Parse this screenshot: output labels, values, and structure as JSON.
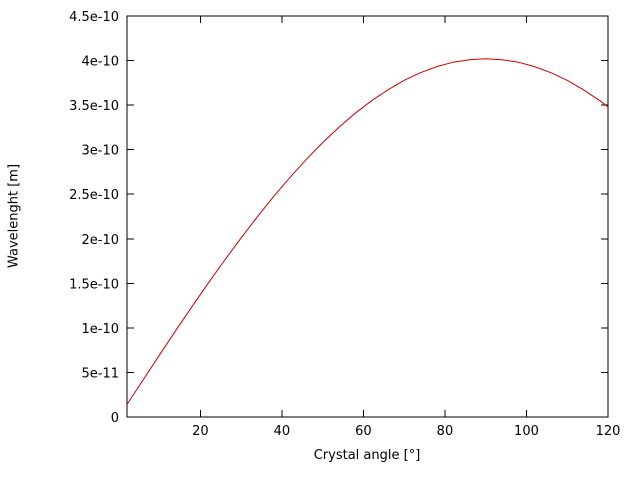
{
  "chart_data": {
    "type": "line",
    "title": "",
    "xlabel": "Crystal angle [°]",
    "ylabel": "Wavelenght [m]",
    "xlim": [
      2,
      120
    ],
    "ylim": [
      0,
      4.5e-10
    ],
    "grid": false,
    "legend": "none",
    "x_tick_values": [
      20,
      40,
      60,
      80,
      100,
      120
    ],
    "x_tick_labels": [
      "20",
      "40",
      "60",
      "80",
      "100",
      "120"
    ],
    "y_tick_values": [
      0,
      5e-11,
      1e-10,
      1.5e-10,
      2e-10,
      2.5e-10,
      3e-10,
      3.5e-10,
      4e-10,
      4.5e-10
    ],
    "y_tick_labels": [
      "0",
      "5e-11",
      "1e-10",
      "1.5e-10",
      "2e-10",
      "2.5e-10",
      "3e-10",
      "3.5e-10",
      "4e-10",
      "4.5e-10"
    ],
    "series": [
      {
        "name": "wavelength",
        "color": "#cc0000",
        "x": [
          2,
          6,
          10,
          14,
          18,
          22,
          26,
          30,
          34,
          38,
          42,
          46,
          50,
          54,
          58,
          62,
          66,
          70,
          74,
          78,
          82,
          86,
          90,
          94,
          98,
          102,
          106,
          110,
          114,
          118,
          120
        ],
        "y": [
          1.403e-11,
          4.202e-11,
          6.981e-11,
          9.725e-11,
          1.242e-10,
          1.506e-10,
          1.762e-10,
          2.01e-10,
          2.248e-10,
          2.475e-10,
          2.69e-10,
          2.892e-10,
          3.079e-10,
          3.252e-10,
          3.409e-10,
          3.549e-10,
          3.672e-10,
          3.778e-10,
          3.864e-10,
          3.932e-10,
          3.981e-10,
          4.01e-10,
          4.02e-10,
          4.01e-10,
          3.981e-10,
          3.932e-10,
          3.864e-10,
          3.778e-10,
          3.672e-10,
          3.549e-10,
          3.481e-10
        ]
      }
    ]
  }
}
